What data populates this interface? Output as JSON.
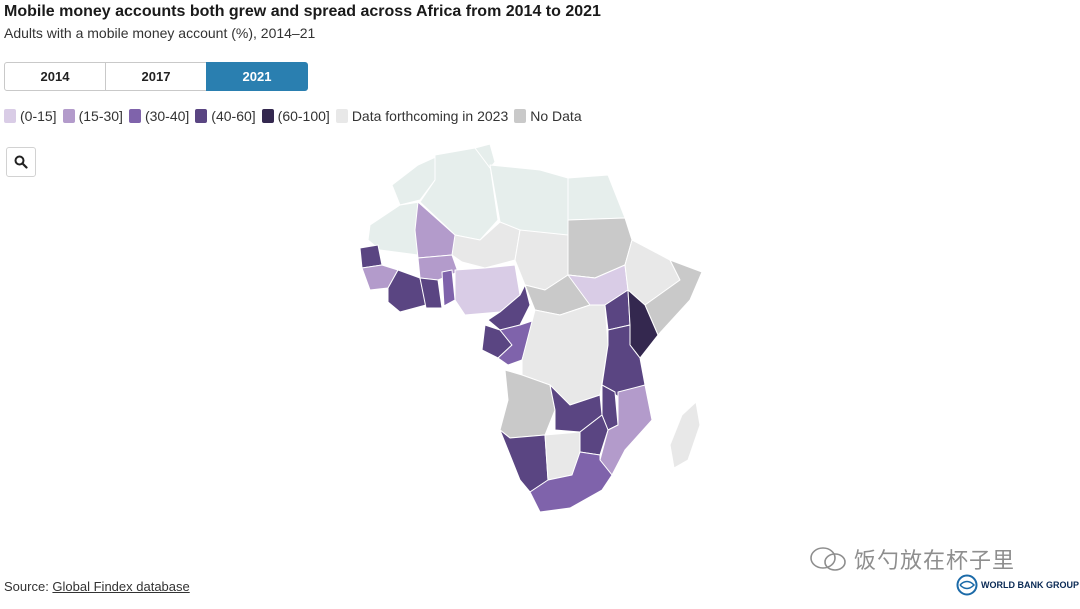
{
  "header": {
    "title": "Mobile money accounts both grew and spread across Africa from 2014 to 2021",
    "subtitle": "Adults with a mobile money account (%), 2014–21"
  },
  "tabs": [
    {
      "label": "2014",
      "active": false
    },
    {
      "label": "2017",
      "active": false
    },
    {
      "label": "2021",
      "active": true
    }
  ],
  "legend": [
    {
      "label": "(0-15]",
      "color": "#d9cce6"
    },
    {
      "label": "(15-30]",
      "color": "#b39bcb"
    },
    {
      "label": "(30-40]",
      "color": "#7f63ab"
    },
    {
      "label": "(40-60]",
      "color": "#5a4582"
    },
    {
      "label": "(60-100]",
      "color": "#34284f"
    },
    {
      "label": "Data forthcoming in 2023",
      "color": "#e8e8e8"
    },
    {
      "label": "No Data",
      "color": "#c9c9c9"
    }
  ],
  "colors": {
    "north_africa": "#e6eeec",
    "accent": "#2a7fb0"
  },
  "map_regions": [
    {
      "name": "Morocco",
      "category": "Data forthcoming in 2023"
    },
    {
      "name": "Algeria",
      "category": "Data forthcoming in 2023"
    },
    {
      "name": "Tunisia",
      "category": "Data forthcoming in 2023"
    },
    {
      "name": "Libya",
      "category": "Data forthcoming in 2023"
    },
    {
      "name": "Egypt",
      "category": "Data forthcoming in 2023"
    },
    {
      "name": "Mauritania",
      "category": "Data forthcoming in 2023"
    },
    {
      "name": "Mali",
      "category": "(15-30]"
    },
    {
      "name": "Senegal",
      "category": "(40-60]"
    },
    {
      "name": "Guinea",
      "category": "(15-30]"
    },
    {
      "name": "Burkina Faso",
      "category": "(15-30]"
    },
    {
      "name": "Côte d'Ivoire",
      "category": "(40-60]"
    },
    {
      "name": "Ghana",
      "category": "(40-60]"
    },
    {
      "name": "Benin",
      "category": "(30-40]"
    },
    {
      "name": "Nigeria",
      "category": "(0-15]"
    },
    {
      "name": "Niger",
      "category": "Data forthcoming in 2023"
    },
    {
      "name": "Chad",
      "category": "Data forthcoming in 2023"
    },
    {
      "name": "Sudan",
      "category": "No Data"
    },
    {
      "name": "South Sudan",
      "category": "(0-15]"
    },
    {
      "name": "Ethiopia",
      "category": "Data forthcoming in 2023"
    },
    {
      "name": "Somalia",
      "category": "No Data"
    },
    {
      "name": "Cameroon",
      "category": "(40-60]"
    },
    {
      "name": "Central African Republic",
      "category": "No Data"
    },
    {
      "name": "Gabon",
      "category": "(40-60]"
    },
    {
      "name": "Congo",
      "category": "(30-40]"
    },
    {
      "name": "DR Congo",
      "category": "Data forthcoming in 2023"
    },
    {
      "name": "Uganda",
      "category": "(40-60]"
    },
    {
      "name": "Kenya",
      "category": "(60-100]"
    },
    {
      "name": "Tanzania",
      "category": "(40-60]"
    },
    {
      "name": "Angola",
      "category": "No Data"
    },
    {
      "name": "Zambia",
      "category": "(40-60]"
    },
    {
      "name": "Malawi",
      "category": "(40-60]"
    },
    {
      "name": "Mozambique",
      "category": "(15-30]"
    },
    {
      "name": "Namibia",
      "category": "(40-60]"
    },
    {
      "name": "Botswana",
      "category": "Data forthcoming in 2023"
    },
    {
      "name": "Zimbabwe",
      "category": "(40-60]"
    },
    {
      "name": "South Africa",
      "category": "(30-40]"
    },
    {
      "name": "Madagascar",
      "category": "Data forthcoming in 2023"
    }
  ],
  "footer": {
    "source_prefix": "Source: ",
    "source_link": "Global Findex database"
  },
  "watermark": {
    "text": "饭勺放在杯子里",
    "logo_text": "WORLD BANK GROUP"
  }
}
